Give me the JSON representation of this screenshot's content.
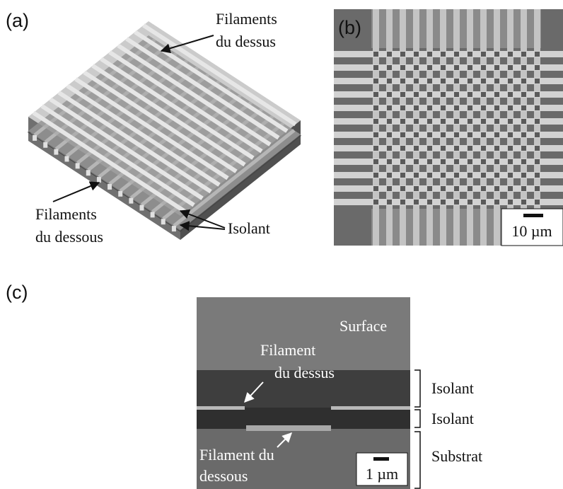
{
  "panel_a": {
    "label": "(a)",
    "top_filaments": [
      "Filaments",
      "du dessus"
    ],
    "bottom_filaments": [
      "Filaments",
      "du dessous"
    ],
    "insulator": "Isolant"
  },
  "panel_b": {
    "label": "(b)",
    "scale_bar": "10 µm"
  },
  "panel_c": {
    "label": "(c)",
    "surface": "Surface",
    "top_filament": [
      "Filament",
      "du dessus"
    ],
    "bottom_filament": [
      "Filament du",
      "dessous"
    ],
    "scale_bar": "1 µm",
    "layers": [
      "Isolant",
      "Isolant",
      "Substrat"
    ]
  }
}
